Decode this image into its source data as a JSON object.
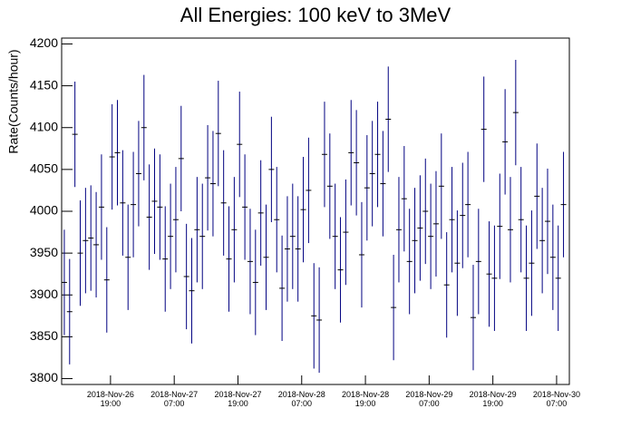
{
  "chart_data": {
    "type": "errorbar",
    "title": "All Energies:  100 keV to 3MeV",
    "y_label": "Rate(Counts/hour)",
    "x": [
      "2018-Nov-26 10:18",
      "2018-Nov-26 11:18",
      "2018-Nov-26 12:18",
      "2018-Nov-26 13:18",
      "2018-Nov-26 14:18",
      "2018-Nov-26 15:18",
      "2018-Nov-26 16:18",
      "2018-Nov-26 17:18",
      "2018-Nov-26 18:18",
      "2018-Nov-26 19:18",
      "2018-Nov-26 20:18",
      "2018-Nov-26 21:18",
      "2018-Nov-26 22:18",
      "2018-Nov-26 23:18",
      "2018-Nov-27 00:18",
      "2018-Nov-27 01:18",
      "2018-Nov-27 02:18",
      "2018-Nov-27 03:18",
      "2018-Nov-27 04:18",
      "2018-Nov-27 05:18",
      "2018-Nov-27 06:18",
      "2018-Nov-27 07:18",
      "2018-Nov-27 08:18",
      "2018-Nov-27 09:18",
      "2018-Nov-27 10:18",
      "2018-Nov-27 11:18",
      "2018-Nov-27 12:18",
      "2018-Nov-27 13:18",
      "2018-Nov-27 14:18",
      "2018-Nov-27 15:18",
      "2018-Nov-27 16:18",
      "2018-Nov-27 17:18",
      "2018-Nov-27 18:18",
      "2018-Nov-27 19:18",
      "2018-Nov-27 20:18",
      "2018-Nov-27 21:18",
      "2018-Nov-27 22:18",
      "2018-Nov-27 23:18",
      "2018-Nov-28 00:18",
      "2018-Nov-28 01:18",
      "2018-Nov-28 02:18",
      "2018-Nov-28 03:18",
      "2018-Nov-28 04:18",
      "2018-Nov-28 05:18",
      "2018-Nov-28 06:18",
      "2018-Nov-28 07:18",
      "2018-Nov-28 08:18",
      "2018-Nov-28 09:18",
      "2018-Nov-28 10:18",
      "2018-Nov-28 11:18",
      "2018-Nov-28 12:18",
      "2018-Nov-28 13:18",
      "2018-Nov-28 14:18",
      "2018-Nov-28 15:18",
      "2018-Nov-28 16:18",
      "2018-Nov-28 17:18",
      "2018-Nov-28 18:18",
      "2018-Nov-28 19:18",
      "2018-Nov-28 20:18",
      "2018-Nov-28 21:18",
      "2018-Nov-28 22:18",
      "2018-Nov-28 23:18",
      "2018-Nov-29 00:18",
      "2018-Nov-29 01:18",
      "2018-Nov-29 02:18",
      "2018-Nov-29 03:18",
      "2018-Nov-29 04:18",
      "2018-Nov-29 05:18",
      "2018-Nov-29 06:18",
      "2018-Nov-29 07:18",
      "2018-Nov-29 08:18",
      "2018-Nov-29 09:18",
      "2018-Nov-29 10:18",
      "2018-Nov-29 11:18",
      "2018-Nov-29 12:18",
      "2018-Nov-29 13:18",
      "2018-Nov-29 14:18",
      "2018-Nov-29 15:18",
      "2018-Nov-29 16:18",
      "2018-Nov-29 17:18",
      "2018-Nov-29 18:18",
      "2018-Nov-29 19:18",
      "2018-Nov-29 20:18",
      "2018-Nov-29 21:18",
      "2018-Nov-29 22:18",
      "2018-Nov-29 23:18",
      "2018-Nov-30 00:18",
      "2018-Nov-30 01:18",
      "2018-Nov-30 02:18",
      "2018-Nov-30 03:18",
      "2018-Nov-30 04:18",
      "2018-Nov-30 05:18",
      "2018-Nov-30 06:18",
      "2018-Nov-30 07:18",
      "2018-Nov-30 08:18"
    ],
    "series": [
      {
        "color": "#000080",
        "values": [
          3915,
          3880,
          4092,
          3950,
          3965,
          3968,
          3960,
          4005,
          3918,
          4065,
          4070,
          4010,
          3945,
          4008,
          4045,
          4100,
          3993,
          4012,
          4005,
          3943,
          3970,
          3990,
          4063,
          3922,
          3905,
          3978,
          3970,
          4040,
          4033,
          4093,
          4010,
          3943,
          3978,
          4080,
          4005,
          3940,
          3915,
          3998,
          3945,
          4050,
          3990,
          3908,
          3955,
          3970,
          3955,
          4002,
          4025,
          3875,
          3870,
          4068,
          4030,
          3970,
          3930,
          3975,
          4070,
          4058,
          3948,
          4028,
          4045,
          4068,
          4033,
          4110,
          3885,
          3978,
          4015,
          3940,
          3965,
          3980,
          4000,
          3970,
          3985,
          4030,
          3912,
          3990,
          3938,
          3995,
          4008,
          3873,
          3940,
          4098,
          3925,
          3920,
          3982,
          4083,
          3978,
          4118,
          3990,
          3920,
          3938,
          4018,
          3965,
          3988,
          3945,
          3920,
          4008
        ]
      }
    ],
    "error": 63,
    "xlim": [
      "2018-Nov-26 09:48",
      "2018-Nov-30 09:24"
    ],
    "xticks": [
      "2018-Nov-26 19:00",
      "2018-Nov-27 07:00",
      "2018-Nov-27 19:00",
      "2018-Nov-28 07:00",
      "2018-Nov-28 19:00",
      "2018-Nov-29 07:00",
      "2018-Nov-29 19:00",
      "2018-Nov-30 07:00"
    ],
    "ylim": [
      3793,
      4207
    ],
    "yticks": [
      3800,
      3850,
      3900,
      3950,
      4000,
      4050,
      4100,
      4150,
      4200
    ]
  }
}
